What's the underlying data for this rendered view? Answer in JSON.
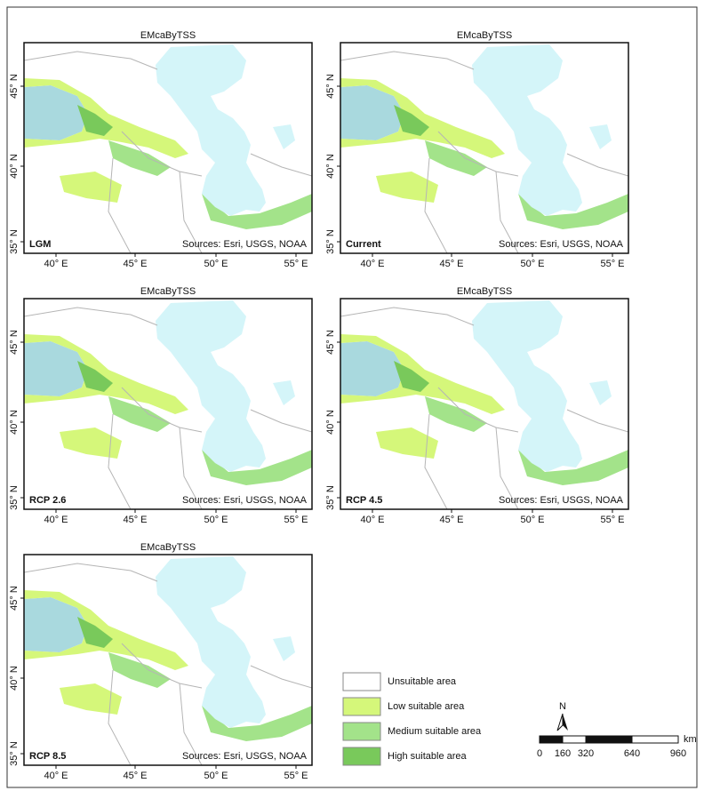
{
  "panels": [
    {
      "title": "EMcaByTSS",
      "label": "LGM",
      "sources": "Sources: Esri, USGS, NOAA",
      "yticks": [
        "45° N",
        "40° N",
        "35° N"
      ],
      "xticks": [
        "40° E",
        "45° E",
        "50° E",
        "55° E"
      ]
    },
    {
      "title": "EMcaByTSS",
      "label": "Current",
      "sources": "Sources: Esri, USGS, NOAA",
      "yticks": [
        "45° N",
        "40° N",
        "35° N"
      ],
      "xticks": [
        "40° E",
        "45° E",
        "50° E",
        "55° E"
      ]
    },
    {
      "title": "EMcaByTSS",
      "label": "RCP 2.6",
      "sources": "Sources: Esri, USGS, NOAA",
      "yticks": [
        "45° N",
        "40° N",
        "35° N"
      ],
      "xticks": [
        "40° E",
        "45° E",
        "50° E",
        "55° E"
      ]
    },
    {
      "title": "EMcaByTSS",
      "label": "RCP 4.5",
      "sources": "Sources: Esri, USGS, NOAA",
      "yticks": [
        "45° N",
        "40° N",
        "35° N"
      ],
      "xticks": [
        "40° E",
        "45° E",
        "50° E",
        "55° E"
      ]
    },
    {
      "title": "EMcaByTSS",
      "label": "RCP 8.5",
      "sources": "Sources: Esri, USGS, NOAA",
      "yticks": [
        "45° N",
        "40° N",
        "35° N"
      ],
      "xticks": [
        "40° E",
        "45° E",
        "50° E",
        "55° E"
      ]
    }
  ],
  "legend": [
    {
      "label": "Unsuitable area",
      "color": "#ffffff"
    },
    {
      "label": "Low suitable area",
      "color": "#d5f77a"
    },
    {
      "label": "Medium suitable area",
      "color": "#a3e38a"
    },
    {
      "label": "High suitable area",
      "color": "#79c95b"
    }
  ],
  "scale_bar": {
    "ticks": [
      0,
      160,
      320,
      640,
      960
    ],
    "unit": "km"
  },
  "north": "N"
}
